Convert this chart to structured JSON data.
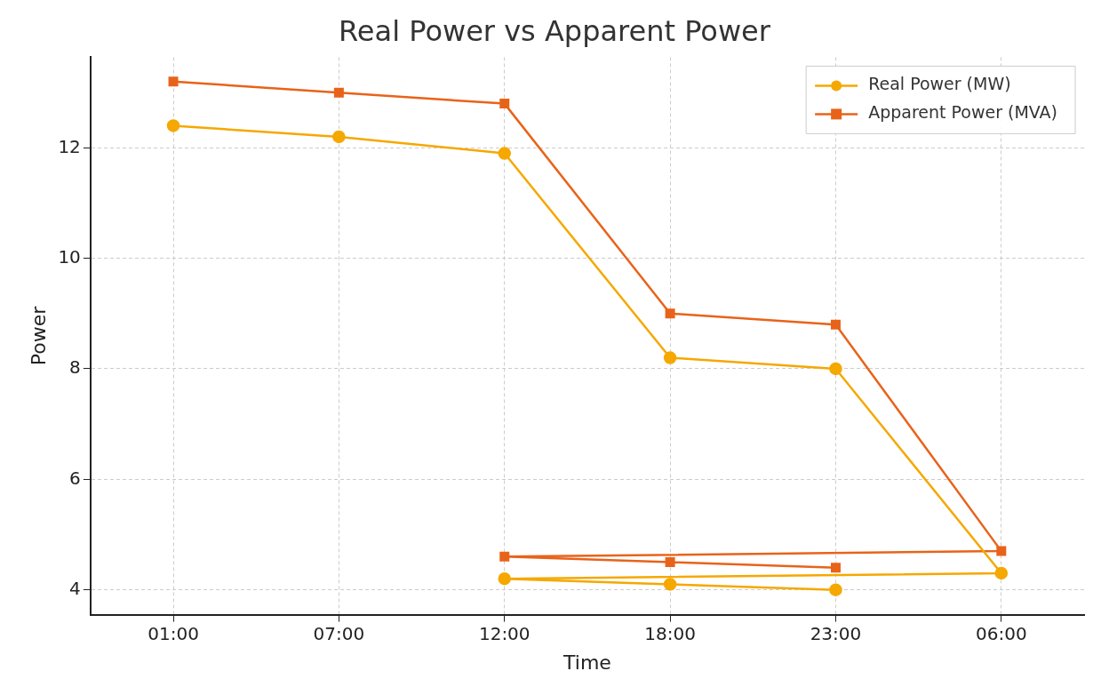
{
  "chart_data": {
    "type": "line",
    "title": "Real Power vs Apparent Power",
    "xlabel": "Time",
    "ylabel": "Power",
    "categories": [
      "01:00",
      "07:00",
      "12:00",
      "18:00",
      "23:00",
      "06:00"
    ],
    "series": [
      {
        "name": "Real Power (MW)",
        "color": "#f5a800",
        "marker": "circle",
        "x": [
          "01:00",
          "07:00",
          "12:00",
          "18:00",
          "23:00",
          "06:00",
          "12:00",
          "18:00",
          "23:00"
        ],
        "values": [
          12.4,
          12.2,
          11.9,
          8.2,
          8.0,
          4.3,
          4.2,
          4.1,
          4.0
        ]
      },
      {
        "name": "Apparent Power (MVA)",
        "color": "#e8631a",
        "marker": "square",
        "x": [
          "01:00",
          "07:00",
          "12:00",
          "18:00",
          "23:00",
          "06:00",
          "12:00",
          "18:00",
          "23:00"
        ],
        "values": [
          13.2,
          13.0,
          12.8,
          9.0,
          8.8,
          4.7,
          4.6,
          4.5,
          4.4
        ]
      }
    ],
    "ylim": [
      3.55,
      13.64
    ],
    "yticks": [
      4,
      6,
      8,
      10,
      12
    ],
    "grid": true,
    "legend": "top right",
    "line_style": "solid"
  }
}
